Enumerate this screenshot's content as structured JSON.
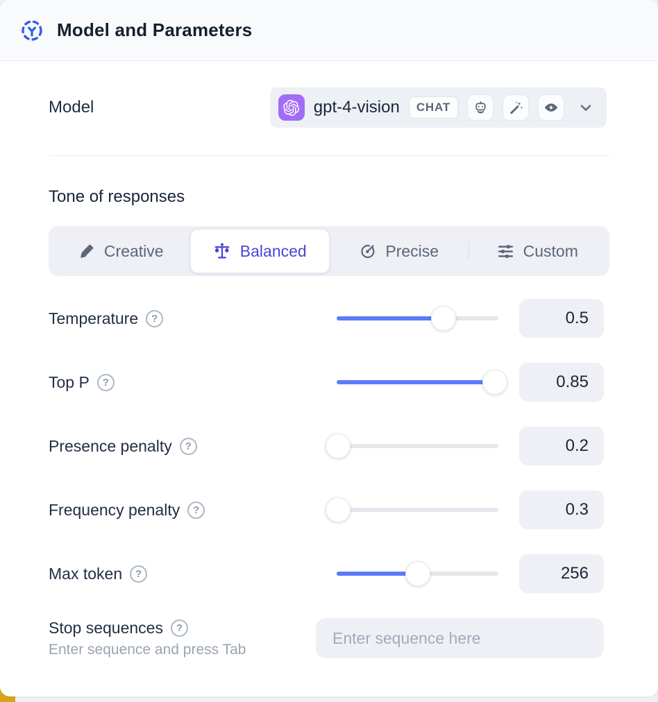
{
  "header": {
    "title": "Model and Parameters",
    "icon": "model-parameters-icon",
    "icon_color": "#2f5fe8"
  },
  "model": {
    "label": "Model",
    "selected_name": "gpt-4-vision",
    "type_badge": "CHAT",
    "provider_icon": "openai-logo",
    "provider_badge_color": "#a36cf6",
    "capability_icons": [
      "robot-icon",
      "magic-wand-icon",
      "vision-eye-icon"
    ]
  },
  "tone": {
    "heading": "Tone of responses",
    "selected_color": "#4a45d6",
    "options": [
      {
        "label": "Creative",
        "icon": "paintbrush-icon",
        "selected": false
      },
      {
        "label": "Balanced",
        "icon": "balance-scale-icon",
        "selected": true
      },
      {
        "label": "Precise",
        "icon": "target-icon",
        "selected": false
      },
      {
        "label": "Custom",
        "icon": "sliders-icon",
        "selected": false
      }
    ]
  },
  "parameters": [
    {
      "label": "Temperature",
      "value": "0.5",
      "percent": 66
    },
    {
      "label": "Top P",
      "value": "0.85",
      "percent": 98
    },
    {
      "label": "Presence penalty",
      "value": "0.2",
      "percent": 1
    },
    {
      "label": "Frequency penalty",
      "value": "0.3",
      "percent": 1
    },
    {
      "label": "Max token",
      "value": "256",
      "percent": 50
    }
  ],
  "stop_sequences": {
    "label": "Stop sequences",
    "hint": "Enter sequence and press Tab",
    "placeholder": "Enter sequence here"
  },
  "colors": {
    "slider_fill": "#5b7bf7",
    "header_bg": "#f8fafc",
    "field_bg": "#eef0f5"
  },
  "help_glyph": "?"
}
